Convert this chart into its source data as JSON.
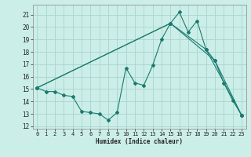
{
  "xlabel": "Humidex (Indice chaleur)",
  "bg_color": "#cceee8",
  "grid_color": "#aad4ce",
  "line_color": "#1a7a6e",
  "xlim": [
    -0.5,
    23.5
  ],
  "ylim": [
    11.8,
    21.8
  ],
  "xticks": [
    0,
    1,
    2,
    3,
    4,
    5,
    6,
    7,
    8,
    9,
    10,
    11,
    12,
    13,
    14,
    15,
    16,
    17,
    18,
    19,
    20,
    21,
    22,
    23
  ],
  "yticks": [
    12,
    13,
    14,
    15,
    16,
    17,
    18,
    19,
    20,
    21
  ],
  "line1_x": [
    0,
    1,
    2,
    3,
    4,
    5,
    6,
    7,
    8,
    9,
    10,
    11,
    12,
    13,
    14,
    15,
    16,
    17,
    18,
    19,
    20,
    21,
    22,
    23
  ],
  "line1_y": [
    15.1,
    14.8,
    14.8,
    14.5,
    14.4,
    13.2,
    13.1,
    13.0,
    12.5,
    13.1,
    16.7,
    15.5,
    15.3,
    16.9,
    19.0,
    20.3,
    21.2,
    19.6,
    20.5,
    18.2,
    17.3,
    15.5,
    14.1,
    12.9
  ],
  "line2_x": [
    0,
    15,
    19,
    23
  ],
  "line2_y": [
    15.1,
    20.3,
    18.2,
    12.9
  ],
  "line3_x": [
    0,
    15,
    20,
    23
  ],
  "line3_y": [
    15.1,
    20.3,
    17.3,
    12.9
  ],
  "xlabel_fontsize": 5.5,
  "tick_labelsize": 5,
  "marker_size": 2.0,
  "linewidth": 0.8
}
